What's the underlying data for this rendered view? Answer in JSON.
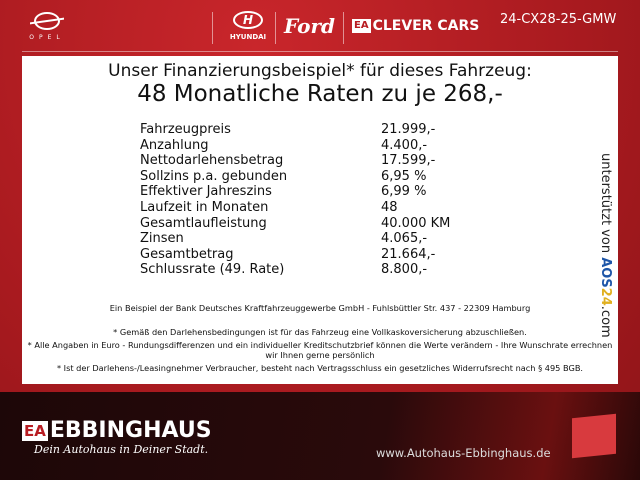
{
  "header": {
    "brands": [
      "OPEL",
      "HYUNDAI",
      "Ford",
      "CLEVER CARS"
    ],
    "clever_badge": "EA",
    "code": "24-CX28-25-GMW"
  },
  "offer": {
    "headline": "Unser Finanzierungsbeispiel* für dieses Fahrzeug:",
    "subheadline": "48 Monatliche Raten zu je 268,-",
    "rows": [
      {
        "label": "Fahrzeugpreis",
        "value": "21.999,-"
      },
      {
        "label": "Anzahlung",
        "value": "4.400,-"
      },
      {
        "label": "Nettodarlehensbetrag",
        "value": "17.599,-"
      },
      {
        "label": "Sollzins p.a. gebunden",
        "value": "6,95 %"
      },
      {
        "label": "Effektiver Jahreszins",
        "value": "6,99 %"
      },
      {
        "label": "Laufzeit in Monaten",
        "value": "48"
      },
      {
        "label": "Gesamtlaufleistung",
        "value": "40.000 KM"
      },
      {
        "label": "Zinsen",
        "value": "4.065,-"
      },
      {
        "label": "Gesamtbetrag",
        "value": "21.664,-"
      },
      {
        "label": "Schlussrate (49. Rate)",
        "value": "8.800,-"
      }
    ],
    "bank": "Ein Beispiel der Bank Deutsches Kraftfahrzeuggewerbe GmbH - Fuhlsbüttler Str. 437 - 22309 Hamburg",
    "notes": [
      "* Gemäß den Darlehensbedingungen ist für das Fahrzeug eine Vollkaskoversicherung abzuschließen.",
      "* Alle Angaben in Euro - Rundungsdifferenzen und ein individueller Kreditschutzbrief können die Werte verändern - Ihre Wunschrate errechnen wir Ihnen gerne persönlich",
      "* Ist der Darlehens-/Leasingnehmer Verbraucher, besteht nach Vertragsschluss ein gesetzliches Widerrufsrecht nach § 495 BGB."
    ],
    "supported_by": "unterstützt von",
    "aos": "AOS",
    "aos_num": "24",
    "aos_tld": ".com"
  },
  "footer": {
    "badge": "EA",
    "name": "EBBINGHAUS",
    "slogan": "Dein Autohaus in Deiner Stadt.",
    "website": "www.Autohaus-Ebbinghaus.de",
    "big_logo": "EA"
  }
}
